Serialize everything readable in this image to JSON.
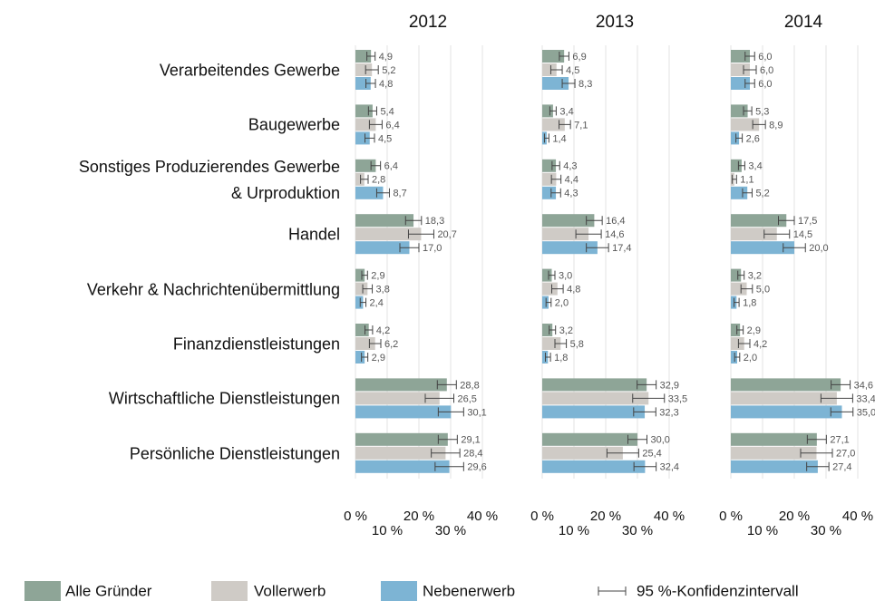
{
  "chart_data": {
    "type": "bar",
    "categories": [
      "Verarbeitendes Gewerbe",
      "Baugewerbe",
      "Sonstiges Produzierendes Gewerbe\n& Urproduktion",
      "Handel",
      "Verkehr & Nachrichtenübermittlung",
      "Finanzdienstleistungen",
      "Wirtschaftliche Dienstleistungen",
      "Persönliche Dienstleistungen"
    ],
    "series": [
      {
        "name": "Alle Gründer",
        "color": "#8ea597"
      },
      {
        "name": "Vollerwerb",
        "color": "#cfcbc6"
      },
      {
        "name": "Nebenerwerb",
        "color": "#7db4d4"
      }
    ],
    "error_label": "95 %-Konfidenzintervall",
    "xlim": [
      0,
      44
    ],
    "xticks": [
      {
        "value": 0,
        "label": "0 %"
      },
      {
        "value": 10,
        "label": "10 %"
      },
      {
        "value": 20,
        "label": "20 %"
      },
      {
        "value": 30,
        "label": "30 %"
      },
      {
        "value": 40,
        "label": "40 %"
      }
    ],
    "grid": true,
    "panels": [
      {
        "title": "2012",
        "series": [
          {
            "values": [
              4.9,
              5.4,
              6.4,
              18.3,
              2.9,
              4.2,
              28.8,
              29.1
            ],
            "value_labels": [
              "4,9",
              "5,4",
              "6,4",
              "18,3",
              "2,9",
              "4,2",
              "28,8",
              "29,1"
            ],
            "errors": [
              1.3,
              1.3,
              1.5,
              2.5,
              0.9,
              1.2,
              3.0,
              3.0
            ]
          },
          {
            "values": [
              5.2,
              6.4,
              2.8,
              20.7,
              3.8,
              6.2,
              26.5,
              28.4
            ],
            "value_labels": [
              "5,2",
              "6,4",
              "2,8",
              "20,7",
              "3,8",
              "6,2",
              "26,5",
              "28,4"
            ],
            "errors": [
              2.0,
              2.0,
              1.2,
              4.0,
              1.5,
              1.8,
              4.5,
              4.5
            ]
          },
          {
            "values": [
              4.8,
              4.5,
              8.7,
              17.0,
              2.4,
              2.9,
              30.1,
              29.6
            ],
            "value_labels": [
              "4,8",
              "4,5",
              "8,7",
              "17,0",
              "2,4",
              "2,9",
              "30,1",
              "29,6"
            ],
            "errors": [
              1.5,
              1.5,
              2.0,
              3.0,
              0.9,
              1.0,
              4.0,
              4.5
            ]
          }
        ]
      },
      {
        "title": "2013",
        "series": [
          {
            "values": [
              6.9,
              3.4,
              4.3,
              16.4,
              3.0,
              3.2,
              32.9,
              30.0
            ],
            "value_labels": [
              "6,9",
              "3,4",
              "4,3",
              "16,4",
              "3,0",
              "3,2",
              "32,9",
              "30,0"
            ],
            "errors": [
              1.5,
              1.0,
              1.2,
              2.5,
              1.0,
              1.0,
              3.0,
              3.0
            ]
          },
          {
            "values": [
              4.5,
              7.1,
              4.4,
              14.6,
              4.8,
              5.8,
              33.5,
              25.4
            ],
            "value_labels": [
              "4,5",
              "7,1",
              "4,4",
              "14,6",
              "4,8",
              "5,8",
              "33,5",
              "25,4"
            ],
            "errors": [
              1.8,
              1.8,
              1.5,
              4.0,
              1.8,
              1.8,
              5.0,
              5.0
            ]
          },
          {
            "values": [
              8.3,
              1.4,
              4.3,
              17.4,
              2.0,
              1.8,
              32.3,
              32.4
            ],
            "value_labels": [
              "8,3",
              "1,4",
              "4,3",
              "17,4",
              "2,0",
              "1,8",
              "32,3",
              "32,4"
            ],
            "errors": [
              2.0,
              0.7,
              1.5,
              3.5,
              0.8,
              0.8,
              3.5,
              3.5
            ]
          }
        ]
      },
      {
        "title": "2014",
        "series": [
          {
            "values": [
              6.0,
              5.3,
              3.4,
              17.5,
              3.2,
              2.9,
              34.6,
              27.1
            ],
            "value_labels": [
              "6,0",
              "5,3",
              "3,4",
              "17,5",
              "3,2",
              "2,9",
              "34,6",
              "27,1"
            ],
            "errors": [
              1.5,
              1.3,
              1.0,
              2.5,
              1.0,
              1.0,
              3.0,
              3.0
            ]
          },
          {
            "values": [
              6.0,
              8.9,
              1.1,
              14.5,
              5.0,
              4.2,
              33.4,
              27.0
            ],
            "value_labels": [
              "6,0",
              "8,9",
              "1,1",
              "14,5",
              "5,0",
              "4,2",
              "33,4",
              "27,0"
            ],
            "errors": [
              2.0,
              2.0,
              0.7,
              4.0,
              1.8,
              1.8,
              5.0,
              5.0
            ]
          },
          {
            "values": [
              6.0,
              2.6,
              5.2,
              20.0,
              1.8,
              2.0,
              35.0,
              27.4
            ],
            "value_labels": [
              "6,0",
              "2,6",
              "5,2",
              "20,0",
              "1,8",
              "2,0",
              "35,0",
              "27,4"
            ],
            "errors": [
              1.5,
              1.0,
              1.5,
              3.5,
              0.8,
              0.8,
              3.5,
              3.5
            ]
          }
        ]
      }
    ]
  }
}
